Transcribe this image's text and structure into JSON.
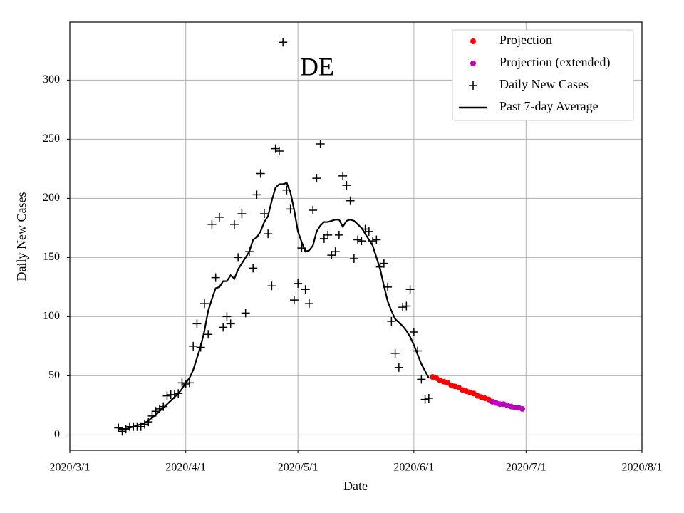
{
  "chart_data": {
    "type": "line",
    "title": "DE",
    "xlabel": "Date",
    "ylabel": "Daily New Cases",
    "xlim": [
      "2020/3/1",
      "2020/8/1"
    ],
    "xticks": [
      "2020/3/1",
      "2020/4/1",
      "2020/5/1",
      "2020/6/1",
      "2020/7/1",
      "2020/8/1"
    ],
    "ylim": [
      -13,
      349
    ],
    "yticks": [
      0,
      50,
      100,
      150,
      200,
      250,
      300
    ],
    "grid": true,
    "legend": "upper right",
    "series": [
      {
        "name": "Projection",
        "color": "#ff0000",
        "style": "dot",
        "x": [
          "2020/6/6",
          "2020/6/7",
          "2020/6/8",
          "2020/6/9",
          "2020/6/10",
          "2020/6/11",
          "2020/6/12",
          "2020/6/13",
          "2020/6/14",
          "2020/6/15",
          "2020/6/16",
          "2020/6/17",
          "2020/6/18",
          "2020/6/19",
          "2020/6/20",
          "2020/6/21"
        ],
        "values": [
          49,
          48,
          46,
          45,
          44,
          42,
          41,
          40,
          38,
          37,
          36,
          35,
          33,
          32,
          31,
          30
        ]
      },
      {
        "name": "Projection (extended)",
        "color": "#bf00bf",
        "style": "dot",
        "x": [
          "2020/6/22",
          "2020/6/23",
          "2020/6/24",
          "2020/6/25",
          "2020/6/26",
          "2020/6/27",
          "2020/6/28",
          "2020/6/29",
          "2020/6/30"
        ],
        "values": [
          28,
          27,
          26,
          26,
          25,
          24,
          23,
          23,
          22
        ]
      },
      {
        "name": "Daily New Cases",
        "color": "#000000",
        "style": "plus",
        "x": [
          "2020/3/14",
          "2020/3/15",
          "2020/3/16",
          "2020/3/17",
          "2020/3/18",
          "2020/3/19",
          "2020/3/20",
          "2020/3/21",
          "2020/3/22",
          "2020/3/23",
          "2020/3/24",
          "2020/3/25",
          "2020/3/26",
          "2020/3/27",
          "2020/3/28",
          "2020/3/29",
          "2020/3/30",
          "2020/3/31",
          "2020/4/1",
          "2020/4/2",
          "2020/4/3",
          "2020/4/4",
          "2020/4/5",
          "2020/4/6",
          "2020/4/7",
          "2020/4/8",
          "2020/4/9",
          "2020/4/10",
          "2020/4/11",
          "2020/4/12",
          "2020/4/13",
          "2020/4/14",
          "2020/4/15",
          "2020/4/16",
          "2020/4/17",
          "2020/4/18",
          "2020/4/19",
          "2020/4/20",
          "2020/4/21",
          "2020/4/22",
          "2020/4/23",
          "2020/4/24",
          "2020/4/25",
          "2020/4/26",
          "2020/4/27",
          "2020/4/28",
          "2020/4/29",
          "2020/4/30",
          "2020/5/1",
          "2020/5/2",
          "2020/5/3",
          "2020/5/4",
          "2020/5/5",
          "2020/5/6",
          "2020/5/7",
          "2020/5/8",
          "2020/5/9",
          "2020/5/10",
          "2020/5/11",
          "2020/5/12",
          "2020/5/13",
          "2020/5/14",
          "2020/5/15",
          "2020/5/16",
          "2020/5/17",
          "2020/5/18",
          "2020/5/19",
          "2020/5/20",
          "2020/5/21",
          "2020/5/22",
          "2020/5/23",
          "2020/5/24",
          "2020/5/25",
          "2020/5/26",
          "2020/5/27",
          "2020/5/28",
          "2020/5/29",
          "2020/5/30",
          "2020/5/31",
          "2020/6/1",
          "2020/6/2",
          "2020/6/3",
          "2020/6/4",
          "2020/6/5"
        ],
        "values": [
          6,
          3,
          5,
          7,
          7,
          7,
          7,
          9,
          11,
          16,
          20,
          22,
          24,
          33,
          34,
          34,
          35,
          44,
          43,
          44,
          75,
          94,
          74,
          111,
          85,
          178,
          133,
          184,
          91,
          100,
          94,
          178,
          150,
          187,
          103,
          155,
          141,
          203,
          221,
          187,
          170,
          126,
          242,
          240,
          332,
          207,
          191,
          114,
          128,
          158,
          123,
          111,
          190,
          217,
          246,
          166,
          169,
          152,
          155,
          169,
          219,
          211,
          198,
          149,
          165,
          164,
          174,
          172,
          164,
          165,
          142,
          145,
          125,
          96,
          69,
          57,
          108,
          109,
          123,
          87,
          71,
          47,
          30,
          31
        ]
      },
      {
        "name": "Past 7-day Average",
        "color": "#000000",
        "style": "line",
        "x": [
          "2020/3/14",
          "2020/3/15",
          "2020/3/16",
          "2020/3/17",
          "2020/3/18",
          "2020/3/19",
          "2020/3/20",
          "2020/3/21",
          "2020/3/22",
          "2020/3/23",
          "2020/3/24",
          "2020/3/25",
          "2020/3/26",
          "2020/3/27",
          "2020/3/28",
          "2020/3/29",
          "2020/3/30",
          "2020/3/31",
          "2020/4/1",
          "2020/4/2",
          "2020/4/3",
          "2020/4/4",
          "2020/4/5",
          "2020/4/6",
          "2020/4/7",
          "2020/4/8",
          "2020/4/9",
          "2020/4/10",
          "2020/4/11",
          "2020/4/12",
          "2020/4/13",
          "2020/4/14",
          "2020/4/15",
          "2020/4/16",
          "2020/4/17",
          "2020/4/18",
          "2020/4/19",
          "2020/4/20",
          "2020/4/21",
          "2020/4/22",
          "2020/4/23",
          "2020/4/24",
          "2020/4/25",
          "2020/4/26",
          "2020/4/27",
          "2020/4/28",
          "2020/4/29",
          "2020/4/30",
          "2020/5/1",
          "2020/5/2",
          "2020/5/3",
          "2020/5/4",
          "2020/5/5",
          "2020/5/6",
          "2020/5/7",
          "2020/5/8",
          "2020/5/9",
          "2020/5/10",
          "2020/5/11",
          "2020/5/12",
          "2020/5/13",
          "2020/5/14",
          "2020/5/15",
          "2020/5/16",
          "2020/5/17",
          "2020/5/18",
          "2020/5/19",
          "2020/5/20",
          "2020/5/21",
          "2020/5/22",
          "2020/5/23",
          "2020/5/24",
          "2020/5/25",
          "2020/5/26",
          "2020/5/27",
          "2020/5/28",
          "2020/5/29",
          "2020/5/30",
          "2020/5/31",
          "2020/6/1",
          "2020/6/2",
          "2020/6/3",
          "2020/6/4",
          "2020/6/5"
        ],
        "values": [
          5,
          5,
          5,
          6,
          7,
          8,
          9,
          10,
          12,
          15,
          17,
          20,
          23,
          26,
          29,
          32,
          35,
          39,
          44,
          48,
          55,
          65,
          75,
          88,
          105,
          115,
          124,
          125,
          130,
          130,
          135,
          132,
          140,
          145,
          150,
          155,
          165,
          167,
          172,
          180,
          185,
          198,
          209,
          212,
          212,
          213,
          205,
          190,
          172,
          163,
          155,
          156,
          160,
          172,
          177,
          180,
          180,
          181,
          182,
          182,
          176,
          181,
          182,
          181,
          178,
          175,
          170,
          165,
          160,
          150,
          140,
          126,
          113,
          105,
          98,
          95,
          92,
          88,
          83,
          76,
          68,
          60,
          54,
          48
        ]
      }
    ]
  }
}
